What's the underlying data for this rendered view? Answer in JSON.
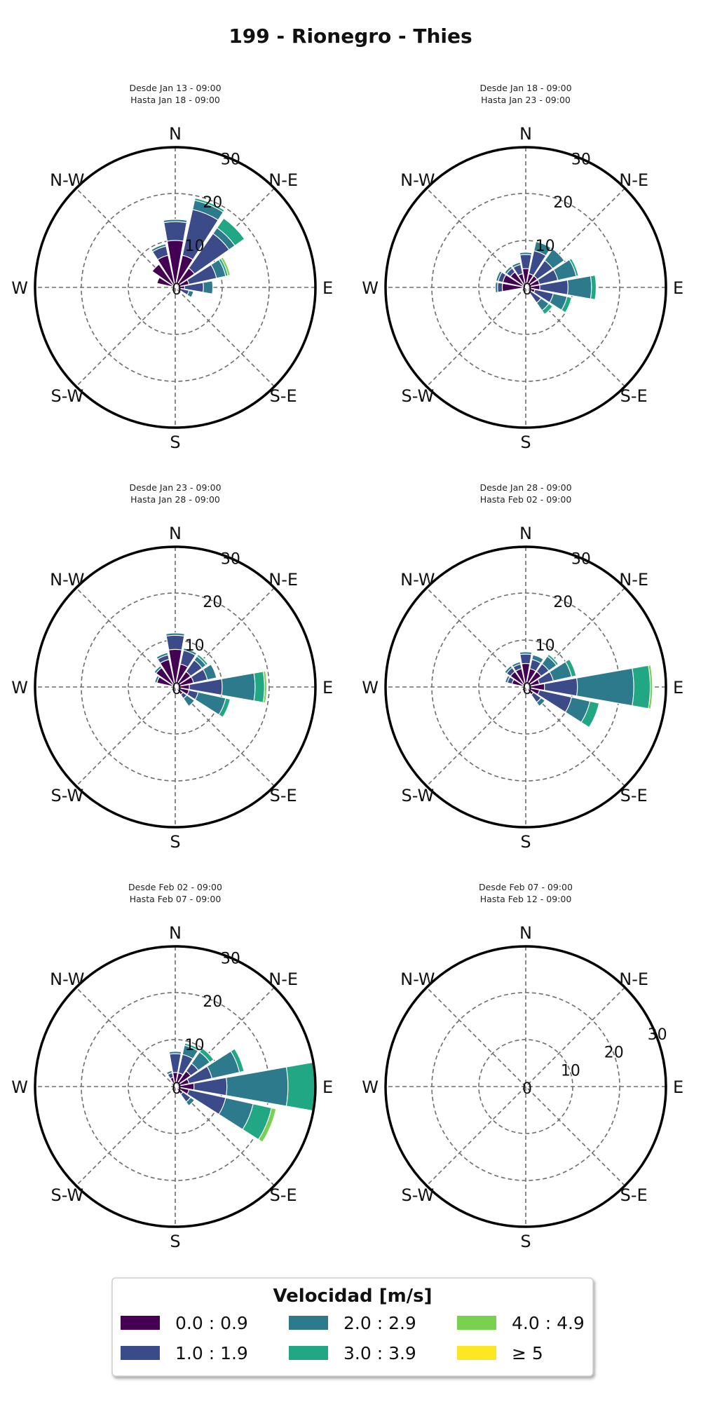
{
  "title": "199 - Rionegro - Thies",
  "directions": [
    "N",
    "N-E",
    "E",
    "S-E",
    "S",
    "S-W",
    "W",
    "N-W"
  ],
  "legend": {
    "title": "Velocidad [m/s]",
    "bins": [
      {
        "label": "0.0 : 0.9",
        "color": "#440154"
      },
      {
        "label": "1.0 : 1.9",
        "color": "#3b4b8a"
      },
      {
        "label": "2.0 : 2.9",
        "color": "#2c7a8c"
      },
      {
        "label": "3.0 : 3.9",
        "color": "#22a784"
      },
      {
        "label": "4.0 : 4.9",
        "color": "#7ad151"
      },
      {
        "label": "≥  5",
        "color": "#fde725"
      }
    ]
  },
  "chart_data": [
    {
      "type": "windrose",
      "subtitle": [
        "Desde Jan 13 - 09:00",
        "Hasta Jan 18 - 09:00"
      ],
      "rmax": 30,
      "ring_ticks": [
        "0",
        "10",
        "20",
        "30"
      ],
      "directions_deg": [
        0,
        22.5,
        45,
        67.5,
        90,
        112.5,
        337.5,
        315,
        292.5
      ],
      "series": [
        {
          "bin": "0.0 : 0.9",
          "values": [
            10,
            7,
            5,
            3,
            2,
            1,
            7,
            6,
            4
          ]
        },
        {
          "bin": "1.0 : 1.9",
          "values": [
            14,
            17,
            14,
            9,
            6,
            3,
            9,
            3,
            2
          ]
        },
        {
          "bin": "2.0 : 2.9",
          "values": [
            14.5,
            19,
            15.5,
            11,
            8,
            4,
            9.5,
            3.5,
            2.5
          ]
        },
        {
          "bin": "3.0 : 3.9",
          "values": [
            14.5,
            19.5,
            18,
            11.5,
            8,
            4,
            9.5,
            3.5,
            2.5
          ]
        },
        {
          "bin": "4.0 : 4.9",
          "values": [
            14.5,
            19.5,
            18,
            12,
            8,
            4,
            9.5,
            3.5,
            2.5
          ]
        }
      ]
    },
    {
      "type": "windrose",
      "subtitle": [
        "Desde Jan 18 - 09:00",
        "Hasta Jan 23 - 09:00"
      ],
      "rmax": 30,
      "ring_ticks": [
        "0",
        "10",
        "20",
        "30"
      ],
      "directions_deg": [
        0,
        22.5,
        45,
        67.5,
        90,
        112.5,
        135,
        270,
        292.5,
        315,
        337.5
      ],
      "series": [
        {
          "bin": "0.0 : 0.9",
          "values": [
            4,
            3,
            3,
            3,
            3,
            2,
            1,
            5,
            5,
            4,
            3
          ]
        },
        {
          "bin": "1.0 : 1.9",
          "values": [
            7,
            8,
            7,
            7,
            9,
            6,
            4,
            6,
            6,
            5,
            5
          ]
        },
        {
          "bin": "2.0 : 2.9",
          "values": [
            7.5,
            10,
            10,
            11,
            14,
            9,
            6,
            6.5,
            6.5,
            5.5,
            5.5
          ]
        },
        {
          "bin": "3.0 : 3.9",
          "values": [
            7.5,
            10,
            10,
            11.5,
            15,
            10,
            7,
            6.5,
            6.5,
            5.5,
            5.5
          ]
        },
        {
          "bin": "4.0 : 4.9",
          "values": [
            7.5,
            10,
            10,
            11.5,
            15,
            10,
            7,
            6.5,
            6.5,
            5.5,
            5.5
          ]
        }
      ]
    },
    {
      "type": "windrose",
      "subtitle": [
        "Desde Jan 23 - 09:00",
        "Hasta Jan 28 - 09:00"
      ],
      "rmax": 30,
      "ring_ticks": [
        "0",
        "10",
        "20",
        "30"
      ],
      "directions_deg": [
        0,
        22.5,
        45,
        67.5,
        90,
        112.5,
        135,
        337.5,
        315,
        292.5
      ],
      "series": [
        {
          "bin": "0.0 : 0.9",
          "values": [
            8,
            5,
            4,
            4,
            3,
            3,
            2,
            6,
            5,
            4
          ]
        },
        {
          "bin": "1.0 : 1.9",
          "values": [
            11,
            8,
            7,
            7,
            10,
            5,
            3,
            7,
            5,
            4
          ]
        },
        {
          "bin": "2.0 : 2.9",
          "values": [
            11.5,
            8.5,
            8,
            9,
            17,
            11,
            5,
            7.5,
            5.5,
            4.5
          ]
        },
        {
          "bin": "3.0 : 3.9",
          "values": [
            11.5,
            8.5,
            8.5,
            9,
            19,
            12,
            5,
            7.5,
            5.5,
            4.5
          ]
        },
        {
          "bin": "4.0 : 4.9",
          "values": [
            11.5,
            8.5,
            8.5,
            9,
            19.5,
            12,
            5,
            7.5,
            5.5,
            4.5
          ]
        }
      ]
    },
    {
      "type": "windrose",
      "subtitle": [
        "Desde Jan 28 - 09:00",
        "Hasta Feb 02 - 09:00"
      ],
      "rmax": 30,
      "ring_ticks": [
        "0",
        "10",
        "20",
        "30"
      ],
      "directions_deg": [
        0,
        22.5,
        45,
        67.5,
        90,
        112.5,
        135,
        337.5,
        315,
        292.5
      ],
      "series": [
        {
          "bin": "0.0 : 0.9",
          "values": [
            5,
            4,
            4,
            3,
            4,
            3,
            2,
            4,
            4,
            3
          ]
        },
        {
          "bin": "1.0 : 1.9",
          "values": [
            7,
            6,
            6,
            6,
            11,
            10,
            4,
            5,
            5,
            4
          ]
        },
        {
          "bin": "2.0 : 2.9",
          "values": [
            7.5,
            7,
            8,
            10,
            23,
            14,
            5,
            5.5,
            5.5,
            4.5
          ]
        },
        {
          "bin": "3.0 : 3.9",
          "values": [
            7.5,
            7,
            8.5,
            11,
            26.5,
            16,
            5,
            5.5,
            5.5,
            4.5
          ]
        },
        {
          "bin": "4.0 : 4.9",
          "values": [
            7.5,
            7,
            8.5,
            11,
            27,
            16,
            5,
            5.5,
            5.5,
            4.5
          ]
        }
      ]
    },
    {
      "type": "windrose",
      "subtitle": [
        "Desde Feb 02 - 09:00",
        "Hasta Feb 07 - 09:00"
      ],
      "rmax": 30,
      "ring_ticks": [
        "0",
        "10",
        "20",
        "30"
      ],
      "directions_deg": [
        0,
        22.5,
        45,
        67.5,
        90,
        112.5,
        135,
        337.5
      ],
      "series": [
        {
          "bin": "0.0 : 0.9",
          "values": [
            3,
            3,
            4,
            3,
            4,
            3,
            2,
            2
          ]
        },
        {
          "bin": "1.0 : 1.9",
          "values": [
            7,
            7,
            6,
            8,
            11,
            11,
            4,
            3
          ]
        },
        {
          "bin": "2.0 : 2.9",
          "values": [
            7.5,
            9,
            9,
            14,
            24,
            17,
            5,
            3.5
          ]
        },
        {
          "bin": "3.0 : 3.9",
          "values": [
            7.5,
            9.5,
            10,
            15,
            30,
            21,
            5,
            3.5
          ]
        },
        {
          "bin": "4.0 : 4.9",
          "values": [
            7.5,
            9.5,
            10,
            15,
            30,
            22,
            5,
            3.5
          ]
        }
      ]
    },
    {
      "type": "windrose",
      "subtitle": [
        "Desde Feb 07 - 09:00",
        "Hasta Feb 12 - 09:00"
      ],
      "rmax": 30,
      "ring_ticks": [
        "0",
        "10",
        "20",
        "30"
      ],
      "ring_label_deg": 67.5,
      "directions_deg": [],
      "series": []
    }
  ]
}
